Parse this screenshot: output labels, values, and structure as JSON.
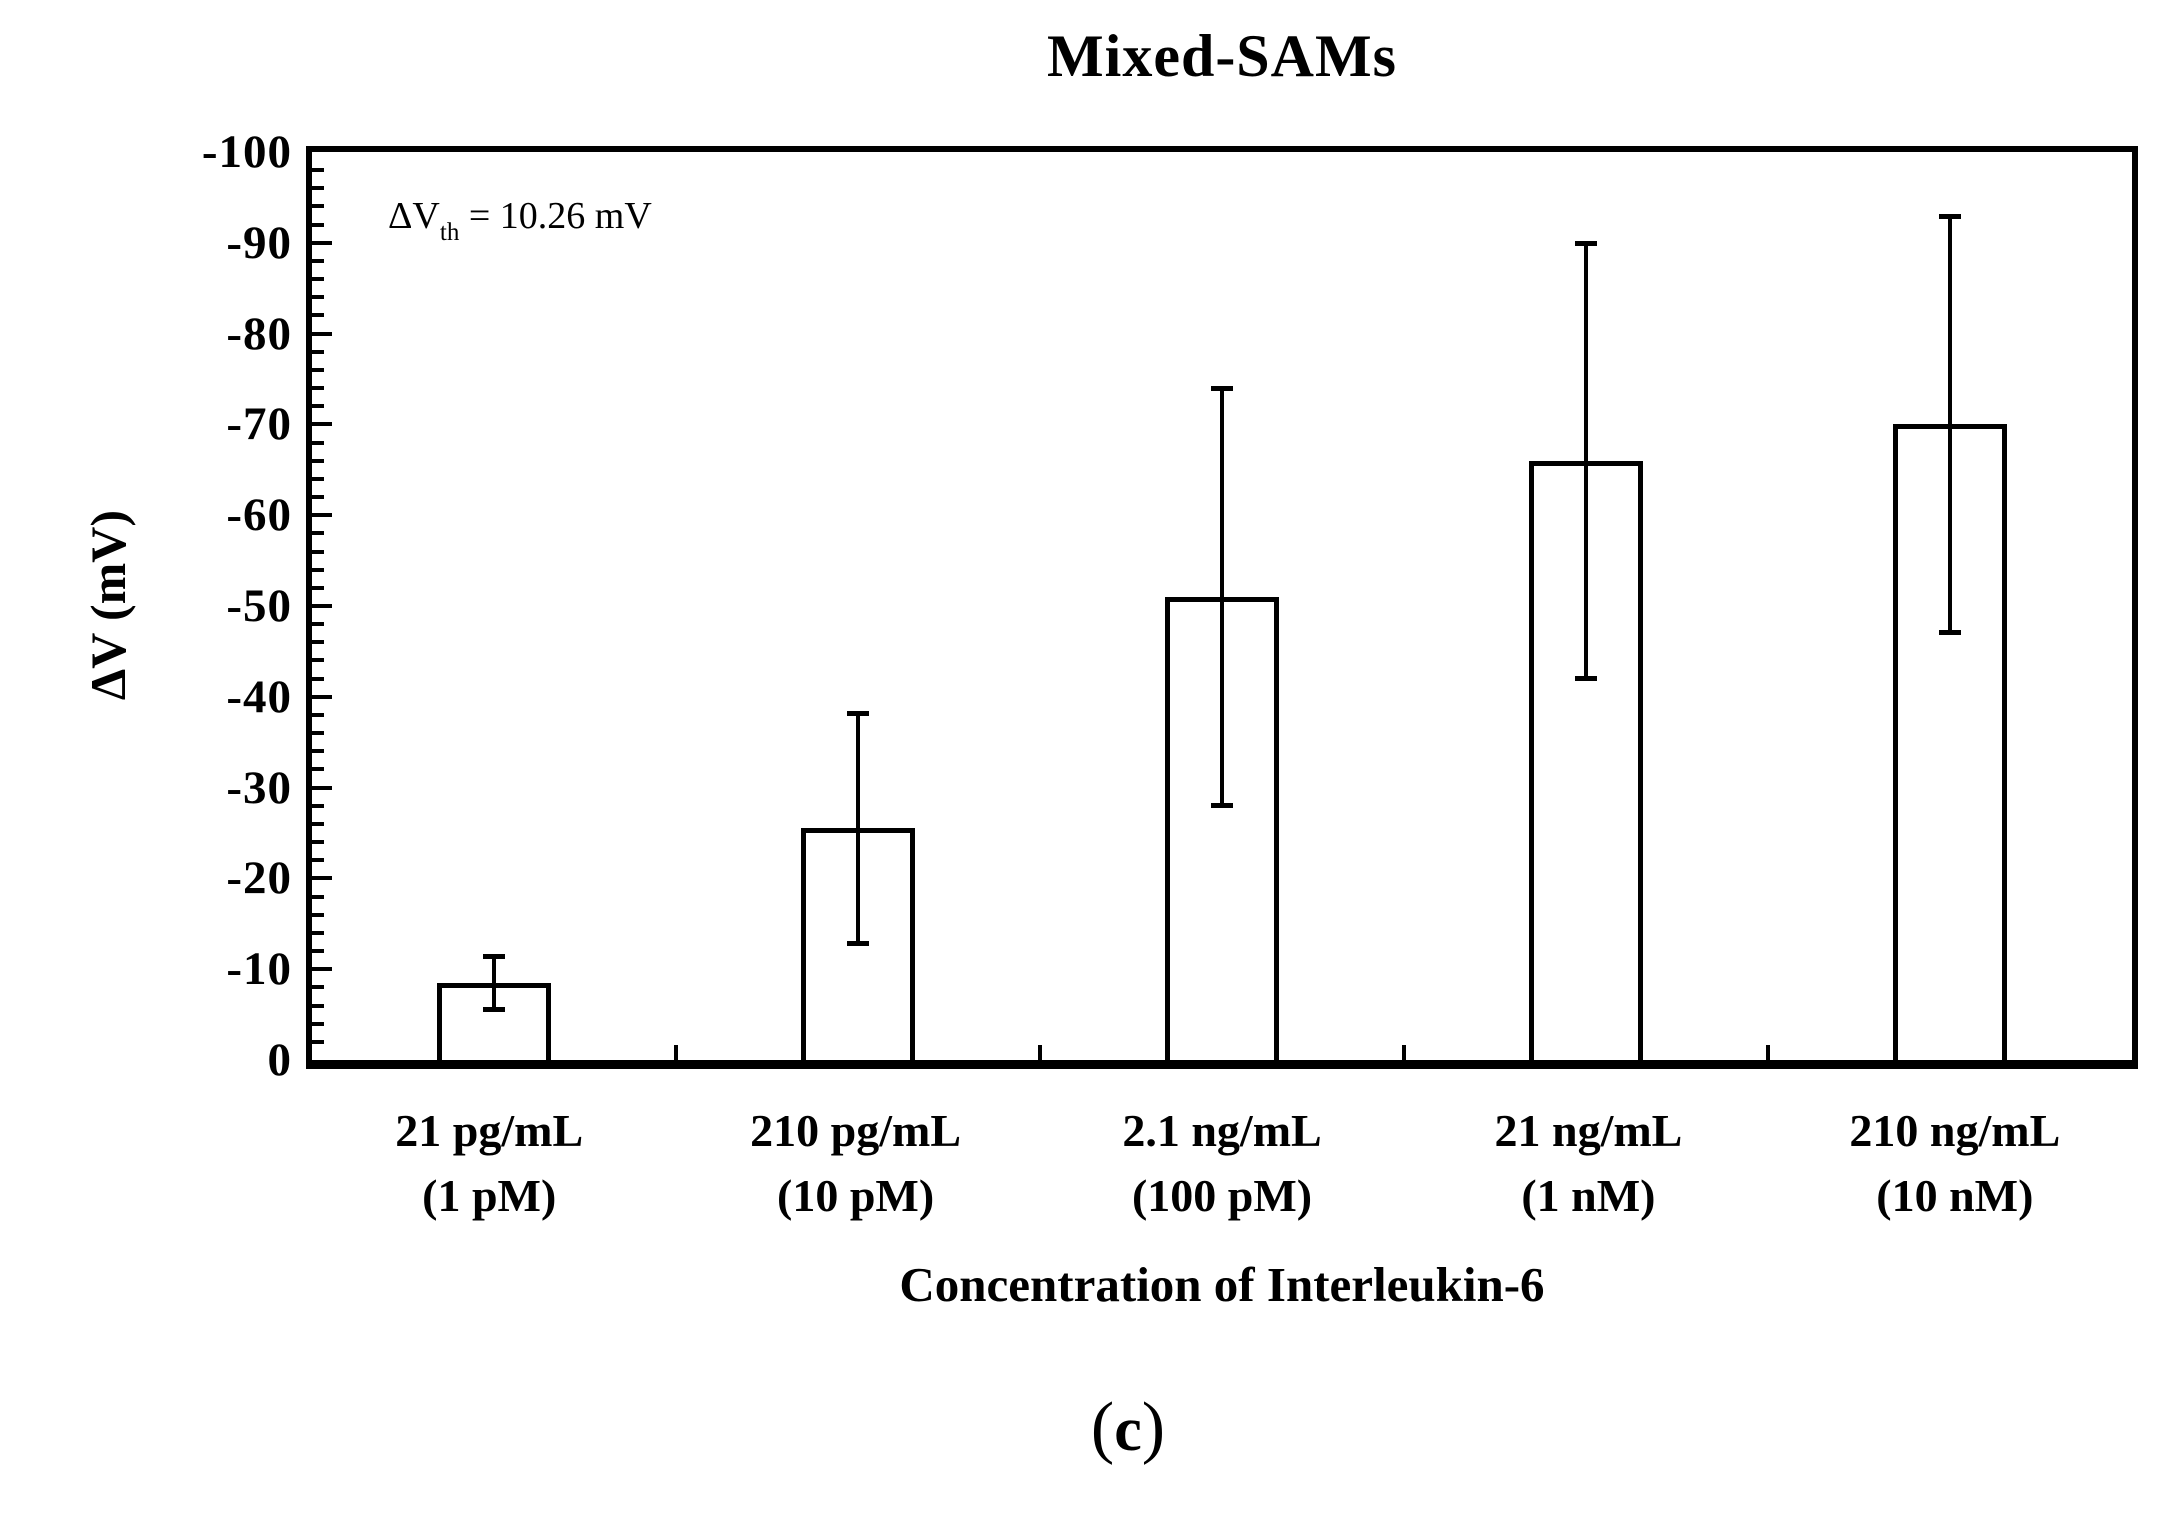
{
  "figure": {
    "annotation": {
      "prefix": "ΔV",
      "subscript": "th",
      "suffix": " = 10.26 mV"
    },
    "caption": {
      "open": "(",
      "letter": "c",
      "close": ")"
    }
  },
  "chart_data": {
    "type": "bar",
    "title": "Mixed-SAMs",
    "xlabel": "Concentration of Interleukin-6",
    "ylabel": "ΔV (mV)",
    "y_axis": {
      "min": 0,
      "max": -100,
      "inverted": true,
      "tick_labels": [
        "-100",
        "-90",
        "-80",
        "-70",
        "-60",
        "-50",
        "-40",
        "-30",
        "-20",
        "-10",
        "0"
      ],
      "major_tick_step_mV": 10,
      "minor_tick_step_mV": 2
    },
    "categories": [
      {
        "line1": "21 pg/mL",
        "line2": "(1 pM)"
      },
      {
        "line1": "210 pg/mL",
        "line2": "(10 pM)"
      },
      {
        "line1": "2.1 ng/mL",
        "line2": "(100 pM)"
      },
      {
        "line1": "21 ng/mL",
        "line2": "(1 nM)"
      },
      {
        "line1": "210 ng/mL",
        "line2": "(10 nM)"
      }
    ],
    "values_mV": [
      -8.5,
      -25.5,
      -51,
      -66,
      -70
    ],
    "error_mV": [
      3,
      12.7,
      23,
      24,
      23
    ],
    "bar_fill": "#ffffff",
    "bar_border": "#000000",
    "grid": false,
    "legend": false
  }
}
